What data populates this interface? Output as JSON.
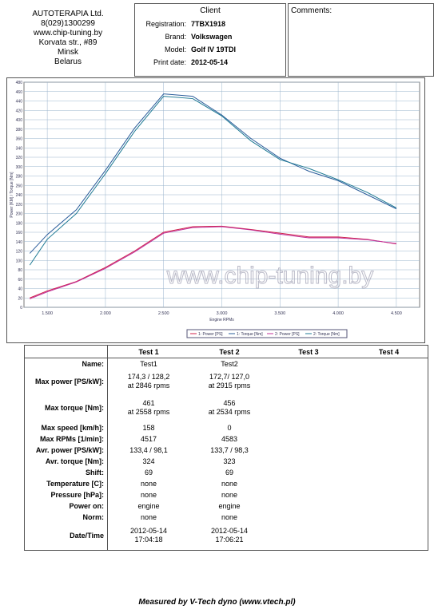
{
  "header": {
    "company": [
      "AUTOTERAPIA Ltd.",
      "8(029)1300299",
      "www.chip-tuning.by",
      "Korvata str., #89",
      "Minsk",
      "Belarus"
    ],
    "client": {
      "title": "Client",
      "fields": [
        {
          "label": "Registration:",
          "value": "7TBX1918"
        },
        {
          "label": "Brand:",
          "value": "Volkswagen"
        },
        {
          "label": "Model:",
          "value": "Golf IV 19TDI"
        },
        {
          "label": "Print date:",
          "value": "2012-05-14"
        }
      ]
    },
    "comments": "Comments:"
  },
  "chart_data": {
    "type": "line",
    "x_label": "Engine RPMs",
    "y_label": "Power [KM] / Torque [Nm]",
    "watermark": "www.chip-tuning.by",
    "x": [
      1350,
      1500,
      1750,
      2000,
      2250,
      2500,
      2750,
      3000,
      3250,
      3500,
      3750,
      4000,
      4250,
      4500
    ],
    "series": [
      {
        "name": "1: Power [PS]",
        "color": "#d0204a",
        "values": [
          20,
          35,
          55,
          85,
          120,
          160,
          172,
          173,
          166,
          158,
          150,
          150,
          145,
          135
        ]
      },
      {
        "name": "1: Torque [Nm]",
        "color": "#2a5c9a",
        "values": [
          115,
          155,
          208,
          292,
          382,
          455,
          450,
          410,
          360,
          318,
          290,
          270,
          240,
          210
        ]
      },
      {
        "name": "2: Power [PS]",
        "color": "#c0309a",
        "values": [
          18,
          33,
          54,
          83,
          118,
          158,
          170,
          172,
          165,
          156,
          148,
          148,
          144,
          136
        ]
      },
      {
        "name": "2: Torque [Nm]",
        "color": "#1f7a94",
        "values": [
          90,
          145,
          200,
          285,
          375,
          450,
          445,
          408,
          355,
          315,
          296,
          272,
          245,
          212
        ]
      }
    ],
    "xlim": [
      1300,
      4700
    ],
    "ylim": [
      0,
      480
    ],
    "xticks": [
      {
        "value": 1500,
        "label": "1.500"
      },
      {
        "value": 2000,
        "label": "2.000"
      },
      {
        "value": 2500,
        "label": "2.500"
      },
      {
        "value": 3000,
        "label": "3.000"
      },
      {
        "value": 3500,
        "label": "3.500"
      },
      {
        "value": 4000,
        "label": "4.000"
      },
      {
        "value": 4500,
        "label": "4.500"
      }
    ],
    "yticks": [
      0,
      20,
      40,
      60,
      80,
      100,
      120,
      140,
      160,
      180,
      200,
      220,
      240,
      260,
      280,
      300,
      320,
      340,
      360,
      380,
      400,
      420,
      440,
      460,
      480
    ],
    "grid": true
  },
  "table": {
    "columns": [
      "Test 1",
      "Test 2",
      "Test 3",
      "Test 4"
    ],
    "rows": [
      {
        "label": "Name:",
        "values": [
          "Test1",
          "Test2"
        ]
      },
      {
        "label": "Max power [PS/kW]:",
        "values": [
          "174,3 / 128,2\nat 2846 rpms",
          "172,7/ 127,0\nat 2915 rpms"
        ]
      },
      {
        "label": "Max torque [Nm]:",
        "values": [
          "461\nat 2558 rpms",
          "456\nat 2534 rpms"
        ]
      },
      {
        "label": "Max speed [km/h]:",
        "values": [
          "158",
          "0"
        ]
      },
      {
        "label": "Max RPMs [1/min]:",
        "values": [
          "4517",
          "4583"
        ]
      },
      {
        "label": "Avr. power [PS/kW]:",
        "values": [
          "133,4 / 98,1",
          "133,7 / 98,3"
        ]
      },
      {
        "label": "Avr. torque [Nm]:",
        "values": [
          "324",
          "323"
        ]
      },
      {
        "label": "Shift:",
        "values": [
          "69",
          "69"
        ]
      },
      {
        "label": "Temperature [C]:",
        "values": [
          "none",
          "none"
        ]
      },
      {
        "label": "Pressure [hPa]:",
        "values": [
          "none",
          "none"
        ]
      },
      {
        "label": "Power on:",
        "values": [
          "engine",
          "engine"
        ]
      },
      {
        "label": "Norm:",
        "values": [
          "none",
          "none"
        ]
      },
      {
        "label": "Date/Time",
        "values": [
          "2012-05-14\n17:04:18",
          "2012-05-14\n17:06:21"
        ]
      }
    ]
  },
  "footer": "Measured by V-Tech dyno (www.vtech.pl)"
}
